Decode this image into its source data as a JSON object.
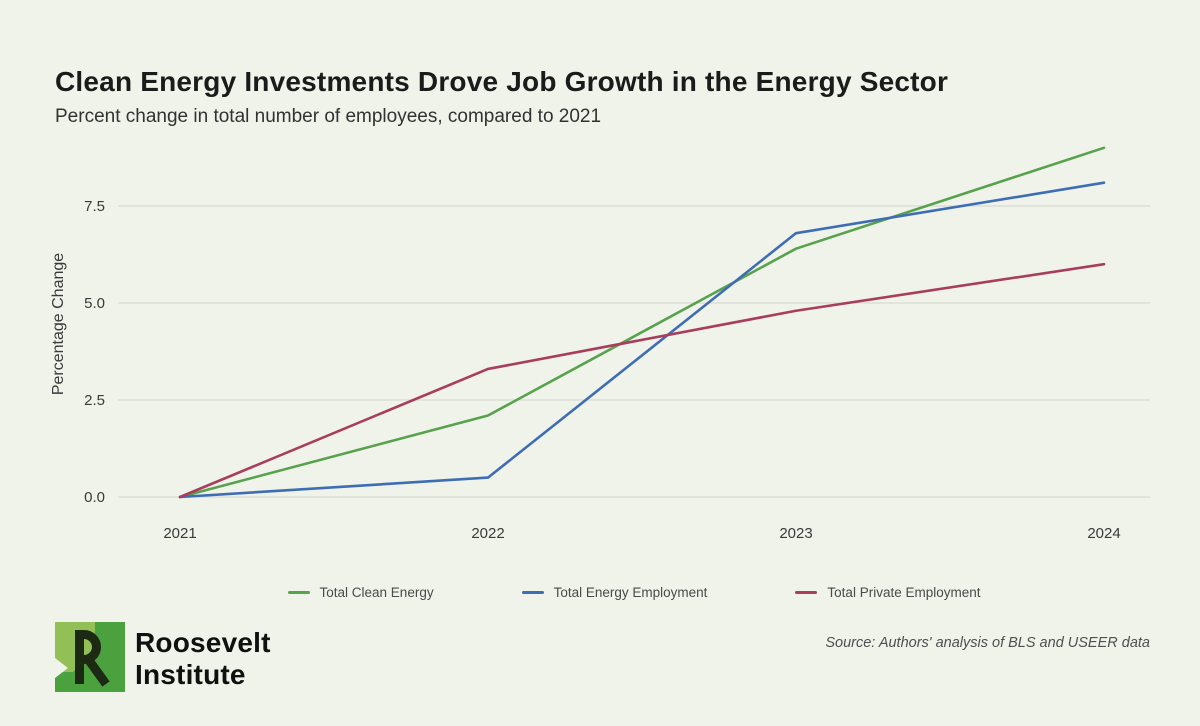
{
  "header": {
    "title": "Clean Energy Investments Drove Job Growth in the Energy Sector",
    "subtitle": "Percent change in total number of employees, compared to 2021"
  },
  "chart_data": {
    "type": "line",
    "x": [
      2021,
      2022,
      2023,
      2024
    ],
    "x_labels": [
      "2021",
      "2022",
      "2023",
      "2024"
    ],
    "ylabel": "Percentage Change",
    "y_ticks": [
      0.0,
      2.5,
      5.0,
      7.5
    ],
    "y_tick_labels": [
      "0.0",
      "2.5",
      "5.0",
      "7.5"
    ],
    "ylim": [
      0,
      9.3
    ],
    "grid": "horizontal",
    "legend_position": "bottom",
    "series": [
      {
        "name": "Total Clean Energy",
        "color": "#58a24e",
        "values": [
          0.0,
          2.1,
          6.4,
          9.0
        ]
      },
      {
        "name": "Total Energy Employment",
        "color": "#3f6db4",
        "values": [
          0.0,
          0.5,
          6.8,
          8.1
        ]
      },
      {
        "name": "Total Private Employment",
        "color": "#a93d5e",
        "values": [
          0.0,
          3.3,
          4.8,
          6.0
        ]
      }
    ]
  },
  "footer": {
    "logo_letter": "R",
    "brand_line1": "Roosevelt",
    "brand_line2": "Institute",
    "source": "Source: Authors' analysis of BLS and USEER data"
  },
  "colors": {
    "background": "#eff3ea",
    "grid_line": "#d8dcd2",
    "axis_text": "#3a3a3a",
    "logo_green": "#4ba13e",
    "logo_light_green": "#93bf57",
    "logo_dark": "#1c2913"
  }
}
